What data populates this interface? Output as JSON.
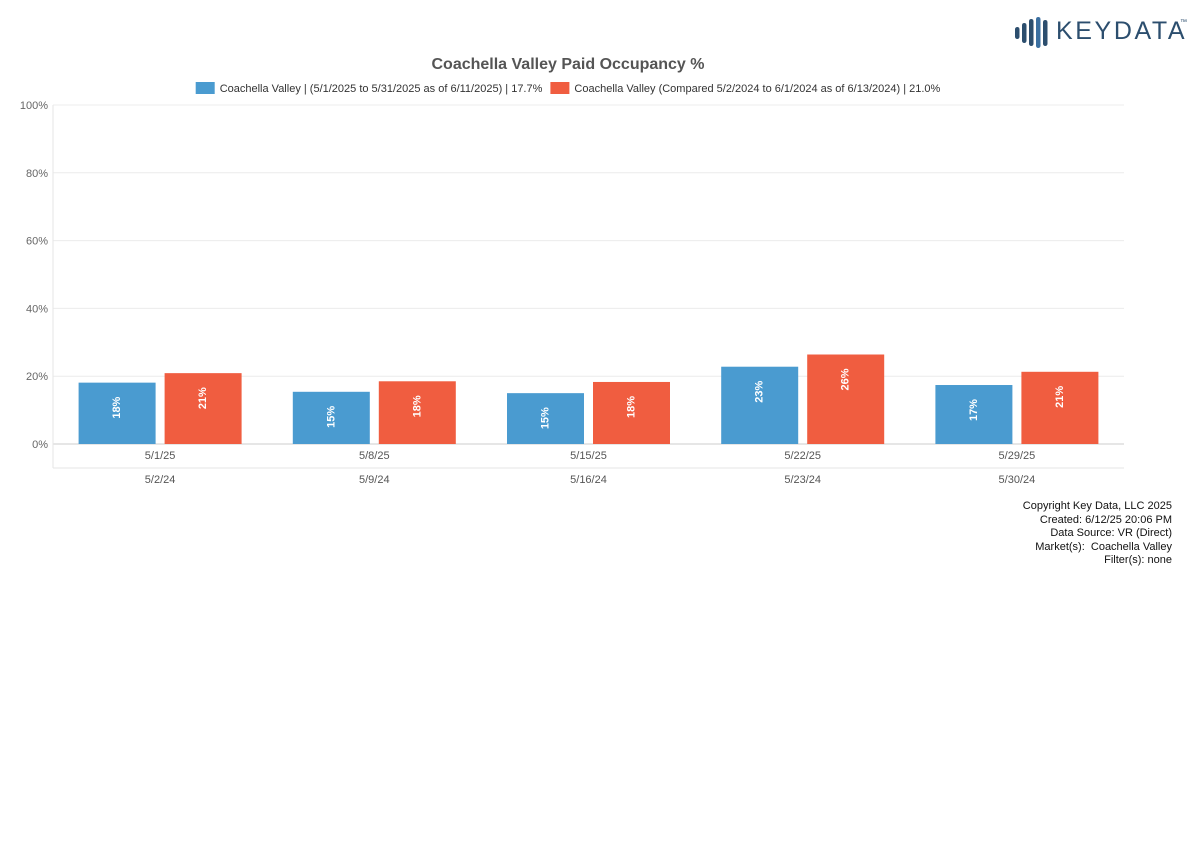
{
  "brand": {
    "name": "KEYDATA",
    "trademark": "™",
    "icon": "bar-signal-logo-icon",
    "color": "#2c4e6e"
  },
  "chart_data": {
    "type": "bar",
    "title": "Coachella Valley Paid Occupancy %",
    "categories": [
      "5/1/25",
      "5/8/25",
      "5/15/25",
      "5/22/25",
      "5/29/25"
    ],
    "secondary_categories": [
      "5/2/24",
      "5/9/24",
      "5/16/24",
      "5/23/24",
      "5/30/24"
    ],
    "series": [
      {
        "name": "Coachella Valley | (5/1/2025 to 5/31/2025 as of 6/11/2025) | 17.7%",
        "color": "#4a9bd0",
        "values": [
          18.1,
          15.4,
          15.0,
          22.8,
          17.4
        ],
        "labels": [
          "18%",
          "15%",
          "15%",
          "23%",
          "17%"
        ]
      },
      {
        "name": "Coachella Valley (Compared 5/2/2024 to 6/1/2024 as of 6/13/2024) | 21.0%",
        "color": "#f05d40",
        "values": [
          20.9,
          18.5,
          18.3,
          26.4,
          21.3
        ],
        "labels": [
          "21%",
          "18%",
          "18%",
          "26%",
          "21%"
        ]
      }
    ],
    "yticks": [
      "0%",
      "20%",
      "40%",
      "60%",
      "80%",
      "100%"
    ],
    "ylim": [
      0,
      100
    ],
    "grid": true,
    "legend_position": "top"
  },
  "footer": {
    "copyright": "Copyright Key Data, LLC 2025",
    "created": "Created: 6/12/25 20:06 PM",
    "source": "Data Source: VR (Direct)",
    "markets": "Market(s):  Coachella Valley",
    "filters": "Filter(s): none"
  }
}
